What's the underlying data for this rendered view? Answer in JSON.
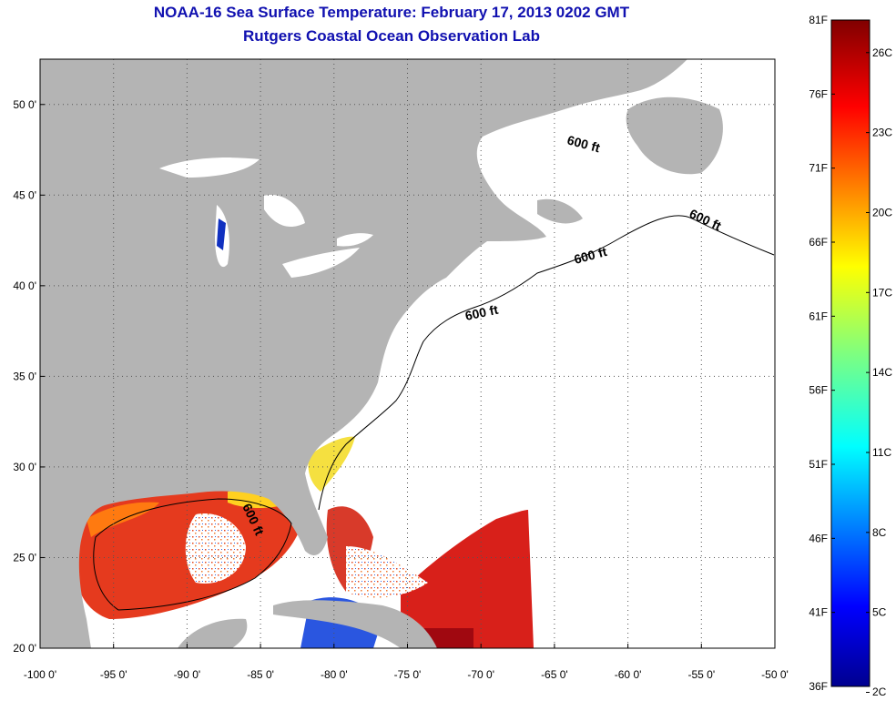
{
  "header": {
    "title": "NOAA-16 Sea Surface Temperature:  February 17, 2013 0202 GMT",
    "subtitle": "Rutgers Coastal Ocean Observation Lab"
  },
  "map": {
    "lon_range": [
      -100,
      -50
    ],
    "lat_range": [
      20,
      52.5
    ],
    "lon_ticks": [
      {
        "value": -100,
        "label": "-100 0'"
      },
      {
        "value": -95,
        "label": "-95 0'"
      },
      {
        "value": -90,
        "label": "-90 0'"
      },
      {
        "value": -85,
        "label": "-85 0'"
      },
      {
        "value": -80,
        "label": "-80 0'"
      },
      {
        "value": -75,
        "label": "-75 0'"
      },
      {
        "value": -70,
        "label": "-70 0'"
      },
      {
        "value": -65,
        "label": "-65 0'"
      },
      {
        "value": -60,
        "label": "-60 0'"
      },
      {
        "value": -55,
        "label": "-55 0'"
      },
      {
        "value": -50,
        "label": "-50 0'"
      }
    ],
    "lat_ticks": [
      {
        "value": 20,
        "label": "20 0'"
      },
      {
        "value": 25,
        "label": "25 0'"
      },
      {
        "value": 30,
        "label": "30 0'"
      },
      {
        "value": 35,
        "label": "35 0'"
      },
      {
        "value": 40,
        "label": "40 0'"
      },
      {
        "value": 45,
        "label": "45 0'"
      },
      {
        "value": 50,
        "label": "50 0'"
      }
    ],
    "grid": "dotted",
    "contour_label": "600 ft",
    "land_color": "#b4b4b4",
    "no_data_color": "#ffffff"
  },
  "colorbar": {
    "range_f": [
      36,
      81
    ],
    "f_labels": [
      "81F",
      "76F",
      "71F",
      "66F",
      "61F",
      "56F",
      "51F",
      "46F",
      "41F",
      "36F"
    ],
    "c_labels": [
      "26C",
      "23C",
      "20C",
      "17C",
      "14C",
      "11C",
      "8C",
      "5C",
      "2C"
    ],
    "colormap": "jet"
  }
}
